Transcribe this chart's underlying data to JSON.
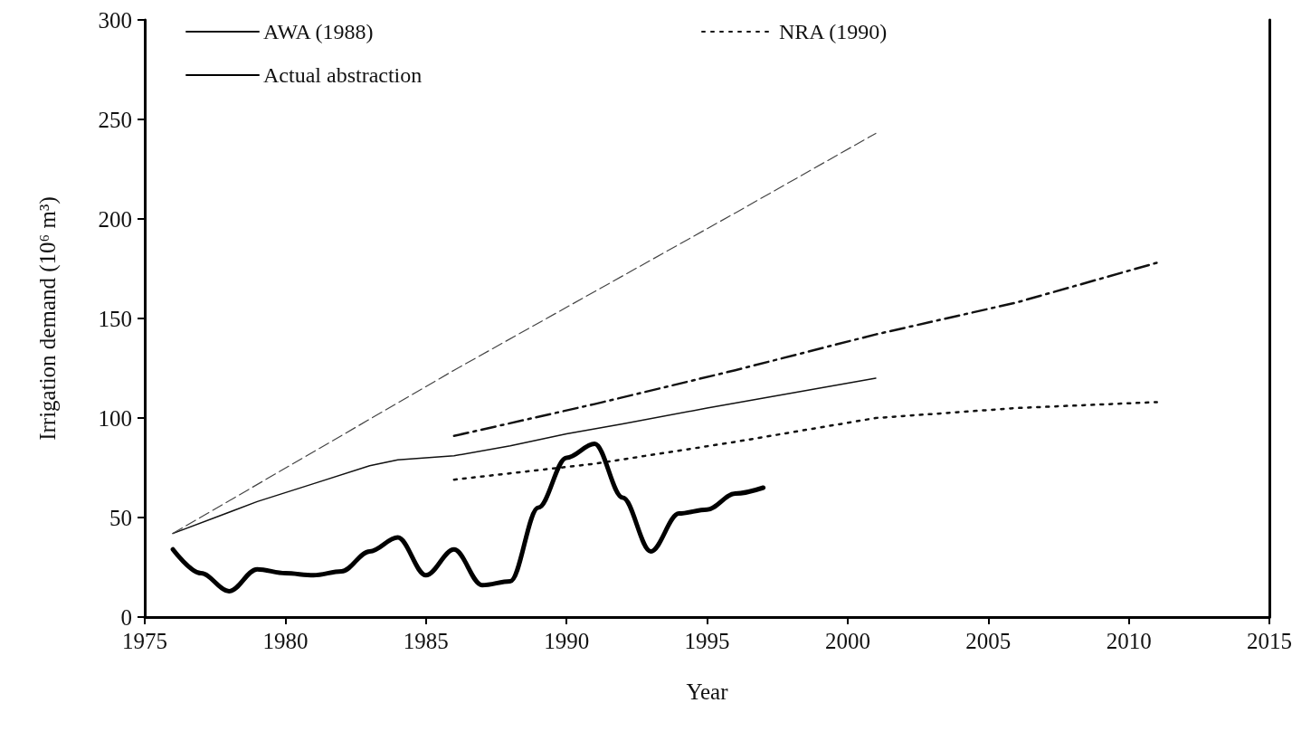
{
  "chart_data": {
    "type": "line",
    "xlabel": "Year",
    "ylabel": "Irrigation demand (10⁶ m³)",
    "xlim": [
      1975,
      2015
    ],
    "xticks": [
      1975,
      1980,
      1985,
      1990,
      1995,
      2000,
      2005,
      2010,
      2015
    ],
    "ylim": [
      0,
      300
    ],
    "yticks": [
      0,
      50,
      100,
      150,
      200,
      250,
      300
    ],
    "grid": false,
    "legend": "top left",
    "marker": "none",
    "series": [
      {
        "name": "AWA (1988)",
        "color": "#111111",
        "line_style": "solid",
        "x": [
          1976,
          1979,
          1981,
          1983,
          1984,
          1986,
          1988,
          1990,
          1992,
          1995,
          1997,
          2001
        ],
        "values": [
          42,
          58,
          67,
          76,
          79,
          81,
          86,
          92,
          97,
          105,
          110,
          120
        ]
      },
      {
        "name": "NRA (1990)",
        "color": "#111111",
        "line_style": "dotted",
        "x": [
          1986,
          1991,
          1996,
          2001,
          2006,
          2011
        ],
        "values": [
          69,
          77,
          88,
          100,
          105,
          108
        ]
      },
      {
        "name": "Actual abstraction",
        "color": "#000000",
        "line_style": "solid",
        "x": [
          1976,
          1977,
          1978,
          1979,
          1980,
          1981,
          1982,
          1983,
          1984,
          1985,
          1986,
          1987,
          1988,
          1989,
          1990,
          1991,
          1992,
          1993,
          1994,
          1995,
          1996,
          1997
        ],
        "values": [
          34,
          22,
          13,
          24,
          22,
          21,
          23,
          33,
          40,
          21,
          34,
          16,
          18,
          55,
          80,
          87,
          60,
          33,
          52,
          54,
          62,
          65
        ]
      },
      {
        "color": "#444444",
        "line_style": "dashed",
        "x": [
          1976,
          1986,
          1996,
          2001
        ],
        "values": [
          42,
          124,
          203,
          243
        ]
      },
      {
        "color": "#111111",
        "line_style": "dashdot",
        "x": [
          1986,
          1991,
          1996,
          2001,
          2006,
          2011
        ],
        "values": [
          91,
          107,
          124,
          142,
          158,
          178
        ]
      }
    ]
  }
}
